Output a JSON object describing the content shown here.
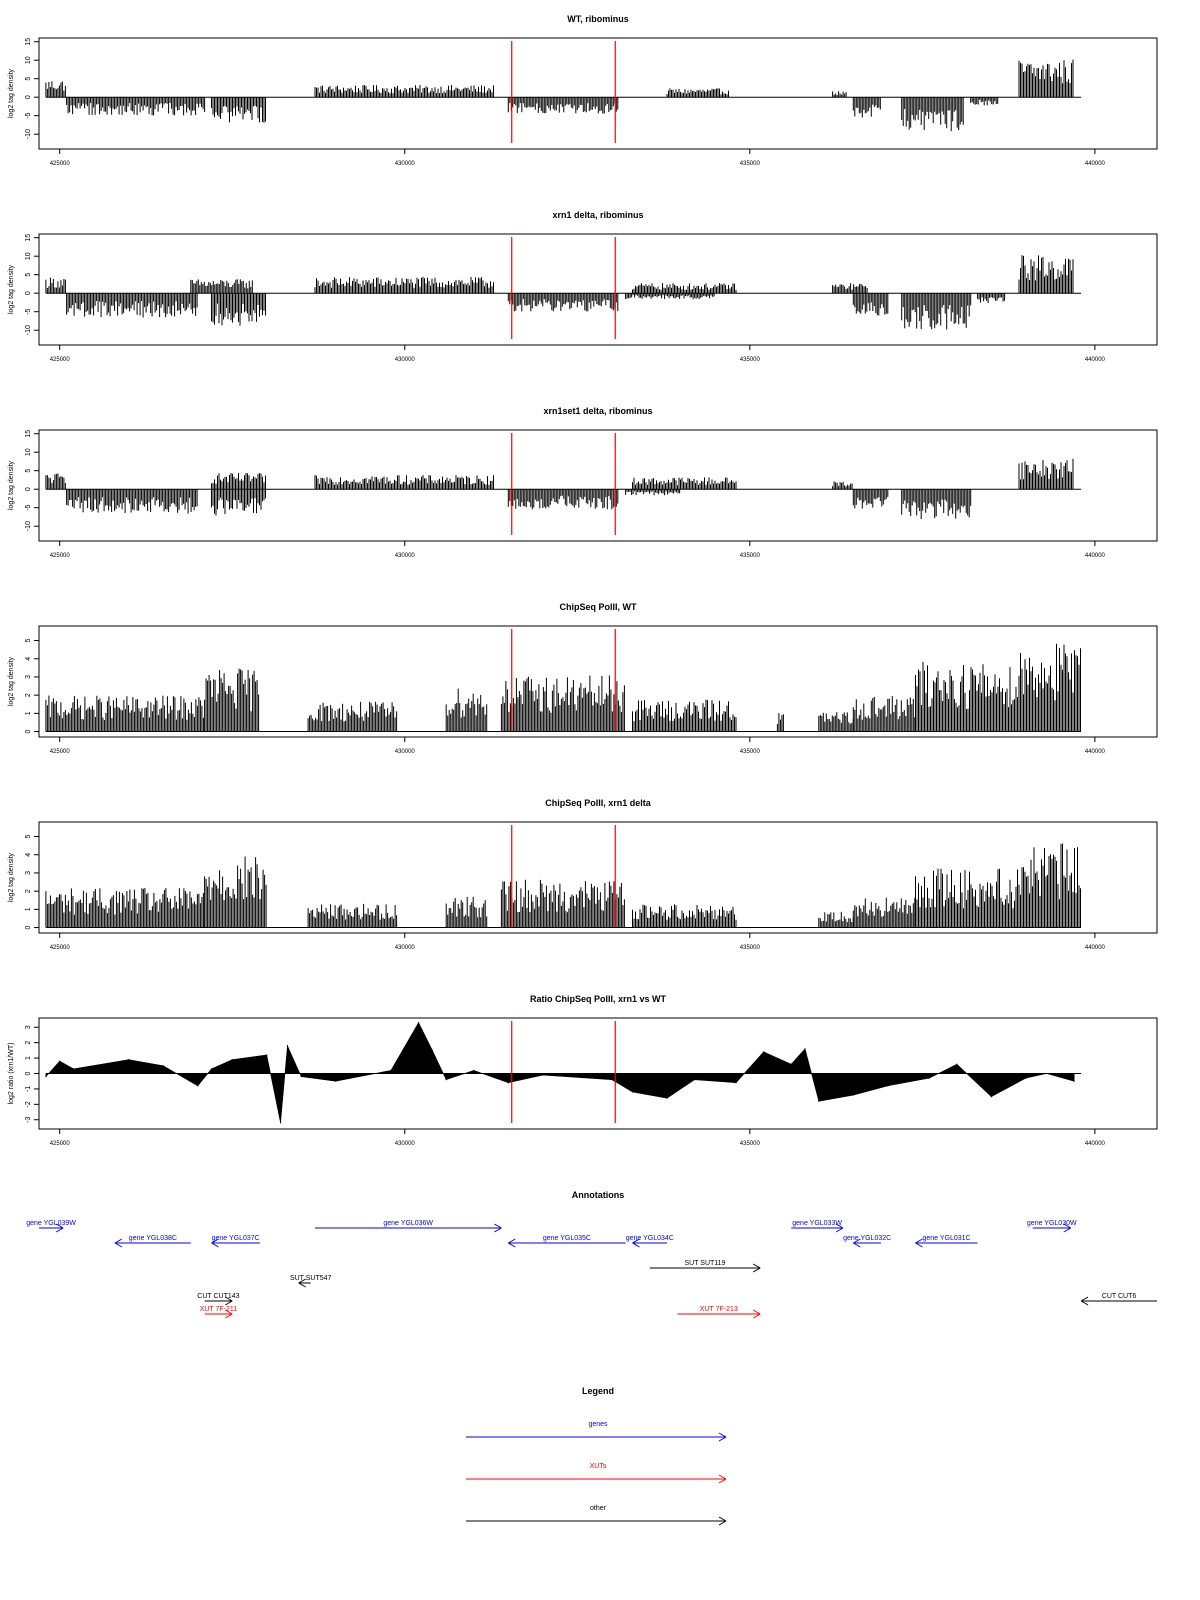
{
  "colors": {
    "genes": "#0000ff",
    "xuts": "#ff0000",
    "other": "#000000",
    "marker": "#ff0000",
    "bars": "#000000"
  },
  "chart_data": [
    {
      "type": "bar",
      "title": "WT, ribominus",
      "ylabel": "log2 tag density",
      "xlim": [
        424700,
        440900
      ],
      "ylim": [
        -14,
        16
      ],
      "yticks": [
        15,
        10,
        5,
        0,
        -5,
        -10
      ],
      "xticks": [
        425000,
        430000,
        435000,
        440000
      ],
      "xtick_labels": [
        "425000",
        "430000",
        "435000",
        "440000"
      ],
      "markers_x": [
        431550,
        433050
      ],
      "series": [
        {
          "name": "plus",
          "segments": [
            [
              424800,
              425100,
              4.5
            ],
            [
              428700,
              431300,
              3.0
            ],
            [
              433800,
              434700,
              2.2
            ],
            [
              436200,
              436400,
              1.5
            ],
            [
              438900,
              439700,
              9.5
            ]
          ]
        },
        {
          "name": "minus",
          "segments": [
            [
              425100,
              427100,
              -4.5
            ],
            [
              427200,
              428000,
              -6.5
            ],
            [
              431500,
              433100,
              -4.0
            ],
            [
              436500,
              436900,
              -5.5
            ],
            [
              437200,
              438100,
              -8.5
            ],
            [
              438200,
              438600,
              -2.0
            ]
          ]
        }
      ]
    },
    {
      "type": "bar",
      "title": "xrn1 delta, ribominus",
      "ylabel": "log2 tag density",
      "xlim": [
        424700,
        440900
      ],
      "ylim": [
        -14,
        16
      ],
      "yticks": [
        15,
        10,
        5,
        0,
        -5,
        -10
      ],
      "xticks": [
        425000,
        430000,
        435000,
        440000
      ],
      "xtick_labels": [
        "425000",
        "430000",
        "435000",
        "440000"
      ],
      "markers_x": [
        431550,
        433050
      ],
      "series": [
        {
          "name": "plus",
          "segments": [
            [
              424800,
              425100,
              4.0
            ],
            [
              426900,
              427800,
              3.5
            ],
            [
              428700,
              431300,
              4.0
            ],
            [
              433300,
              434800,
              2.5
            ],
            [
              436200,
              436700,
              2.5
            ],
            [
              438900,
              439700,
              9.5
            ]
          ]
        },
        {
          "name": "minus",
          "segments": [
            [
              425100,
              427000,
              -6.0
            ],
            [
              427200,
              428000,
              -8.0
            ],
            [
              431500,
              433100,
              -4.5
            ],
            [
              433200,
              434500,
              -1.5
            ],
            [
              436500,
              437000,
              -6.0
            ],
            [
              437200,
              438200,
              -9.0
            ],
            [
              438300,
              438700,
              -2.5
            ]
          ]
        }
      ]
    },
    {
      "type": "bar",
      "title": "xrn1set1 delta, ribominus",
      "ylabel": "log2 tag density",
      "xlim": [
        424700,
        440900
      ],
      "ylim": [
        -14,
        16
      ],
      "yticks": [
        15,
        10,
        5,
        0,
        -5,
        -10
      ],
      "xticks": [
        425000,
        430000,
        435000,
        440000
      ],
      "xtick_labels": [
        "425000",
        "430000",
        "435000",
        "440000"
      ],
      "markers_x": [
        431550,
        433050
      ],
      "series": [
        {
          "name": "plus",
          "segments": [
            [
              424800,
              425100,
              4.0
            ],
            [
              427200,
              428000,
              4.0
            ],
            [
              428700,
              431300,
              3.5
            ],
            [
              433300,
              434800,
              3.0
            ],
            [
              436200,
              436500,
              2.0
            ],
            [
              438900,
              439700,
              7.5
            ]
          ]
        },
        {
          "name": "minus",
          "segments": [
            [
              425100,
              427000,
              -6.0
            ],
            [
              427200,
              428000,
              -6.5
            ],
            [
              431500,
              433100,
              -5.0
            ],
            [
              433200,
              434000,
              -1.5
            ],
            [
              436500,
              437000,
              -5.0
            ],
            [
              437200,
              438200,
              -7.5
            ]
          ]
        }
      ]
    },
    {
      "type": "bar",
      "title": "ChipSeq PolII, WT",
      "ylabel": "log2 tag density",
      "xlim": [
        424700,
        440900
      ],
      "ylim": [
        -0.3,
        5.8
      ],
      "yticks": [
        0,
        1,
        2,
        3,
        4,
        5
      ],
      "xticks": [
        425000,
        430000,
        435000,
        440000
      ],
      "xtick_labels": [
        "425000",
        "430000",
        "435000",
        "440000"
      ],
      "markers_x": [
        431550,
        433050
      ],
      "series": [
        {
          "name": "density",
          "segments": [
            [
              424800,
              427100,
              1.8
            ],
            [
              427100,
              427900,
              3.2
            ],
            [
              428600,
              429900,
              1.5
            ],
            [
              430600,
              431200,
              2.2
            ],
            [
              431400,
              433200,
              2.8
            ],
            [
              433300,
              434800,
              1.6
            ],
            [
              435400,
              435500,
              1.0
            ],
            [
              436000,
              436500,
              1.0
            ],
            [
              436500,
              437400,
              1.8
            ],
            [
              437400,
              438900,
              3.5
            ],
            [
              438900,
              439800,
              4.5
            ]
          ]
        }
      ]
    },
    {
      "type": "bar",
      "title": "ChipSeq PolII, xrn1 delta",
      "ylabel": "log2 tag density",
      "xlim": [
        424700,
        440900
      ],
      "ylim": [
        -0.3,
        5.8
      ],
      "yticks": [
        0,
        1,
        2,
        3,
        4,
        5
      ],
      "xticks": [
        425000,
        430000,
        435000,
        440000
      ],
      "xtick_labels": [
        "425000",
        "430000",
        "435000",
        "440000"
      ],
      "markers_x": [
        431550,
        433050
      ],
      "series": [
        {
          "name": "density",
          "segments": [
            [
              424800,
              427100,
              2.0
            ],
            [
              427100,
              428000,
              3.6
            ],
            [
              428600,
              429900,
              1.2
            ],
            [
              430600,
              431200,
              1.6
            ],
            [
              431400,
              433200,
              2.4
            ],
            [
              433300,
              434800,
              1.2
            ],
            [
              436000,
              436500,
              0.8
            ],
            [
              436500,
              437400,
              1.5
            ],
            [
              437400,
              438900,
              3.0
            ],
            [
              438900,
              439800,
              4.2
            ]
          ]
        }
      ]
    },
    {
      "type": "area",
      "title": "Ratio ChipSeq PolII, xrn1 vs WT",
      "ylabel": "log2 ratio (xrn1/WT)",
      "xlim": [
        424700,
        440900
      ],
      "ylim": [
        -3.6,
        3.6
      ],
      "yticks": [
        3,
        2,
        1,
        0,
        -1,
        -2,
        -3
      ],
      "xticks": [
        425000,
        430000,
        435000,
        440000
      ],
      "xtick_labels": [
        "425000",
        "430000",
        "435000",
        "440000"
      ],
      "markers_x": [
        431550,
        433050
      ],
      "x": [
        424800,
        425000,
        425200,
        426000,
        426500,
        427000,
        427200,
        427500,
        428000,
        428200,
        428300,
        428500,
        429000,
        429800,
        430200,
        430400,
        430600,
        431000,
        431500,
        432000,
        433000,
        433300,
        433800,
        434200,
        434800,
        435200,
        435600,
        435800,
        436000,
        436500,
        437000,
        437600,
        438000,
        438500,
        439000,
        439300,
        439700
      ],
      "y": [
        -0.2,
        0.8,
        0.3,
        0.9,
        0.5,
        -0.8,
        0.3,
        0.9,
        1.2,
        -3.2,
        1.8,
        -0.2,
        -0.5,
        0.2,
        3.3,
        1.5,
        -0.4,
        0.2,
        -0.6,
        -0.1,
        -0.4,
        -1.2,
        -1.6,
        -0.4,
        -0.6,
        1.4,
        0.6,
        1.6,
        -1.8,
        -1.4,
        -0.8,
        -0.3,
        0.6,
        -1.5,
        -0.3,
        0.0,
        -0.5
      ]
    }
  ],
  "annotations": {
    "title": "Annotations",
    "xlim": [
      424700,
      440900
    ],
    "items": [
      {
        "label": "gene YGL039W",
        "start": 424700,
        "end": 425050,
        "strand": "+",
        "kind": "gene",
        "row": 0
      },
      {
        "label": "gene YGL038C",
        "start": 425800,
        "end": 426900,
        "strand": "-",
        "kind": "gene",
        "row": 1
      },
      {
        "label": "gene YGL037C",
        "start": 427200,
        "end": 427900,
        "strand": "-",
        "kind": "gene",
        "row": 1
      },
      {
        "label": "gene YGL036W",
        "start": 428700,
        "end": 431400,
        "strand": "+",
        "kind": "gene",
        "row": 0
      },
      {
        "label": "gene YGL035C",
        "start": 431500,
        "end": 433200,
        "strand": "-",
        "kind": "gene",
        "row": 1
      },
      {
        "label": "gene YGL034C",
        "start": 433300,
        "end": 433800,
        "strand": "-",
        "kind": "gene",
        "row": 1
      },
      {
        "label": "gene YGL033W",
        "start": 435600,
        "end": 436350,
        "strand": "+",
        "kind": "gene",
        "row": 0
      },
      {
        "label": "gene YGL032C",
        "start": 436500,
        "end": 436900,
        "strand": "-",
        "kind": "gene",
        "row": 1
      },
      {
        "label": "gene YGL031C",
        "start": 437400,
        "end": 438300,
        "strand": "-",
        "kind": "gene",
        "row": 1
      },
      {
        "label": "gene YGL030W",
        "start": 439100,
        "end": 439650,
        "strand": "+",
        "kind": "gene",
        "row": 0
      },
      {
        "label": "SUT SUT119",
        "start": 433550,
        "end": 435150,
        "strand": "+",
        "kind": "other",
        "row": 2
      },
      {
        "label": "SUT SUT547",
        "start": 428500,
        "end": 428600,
        "strand": "-",
        "kind": "other",
        "row": 3
      },
      {
        "label": "CUT CUT143",
        "start": 427100,
        "end": 427500,
        "strand": "+",
        "kind": "other",
        "row": 4
      },
      {
        "label": "XUT 7F-211",
        "start": 427100,
        "end": 427500,
        "strand": "+",
        "kind": "xut",
        "row": 5
      },
      {
        "label": "XUT 7F-213",
        "start": 433950,
        "end": 435150,
        "strand": "+",
        "kind": "xut",
        "row": 5
      },
      {
        "label": "CUT CUT6",
        "start": 439800,
        "end": 440900,
        "strand": "-",
        "kind": "other",
        "row": 4
      }
    ]
  },
  "legend": {
    "title": "Legend",
    "items": [
      {
        "label": "genes",
        "kind": "gene"
      },
      {
        "label": "XUTs",
        "kind": "xut"
      },
      {
        "label": "other",
        "kind": "other"
      }
    ]
  }
}
